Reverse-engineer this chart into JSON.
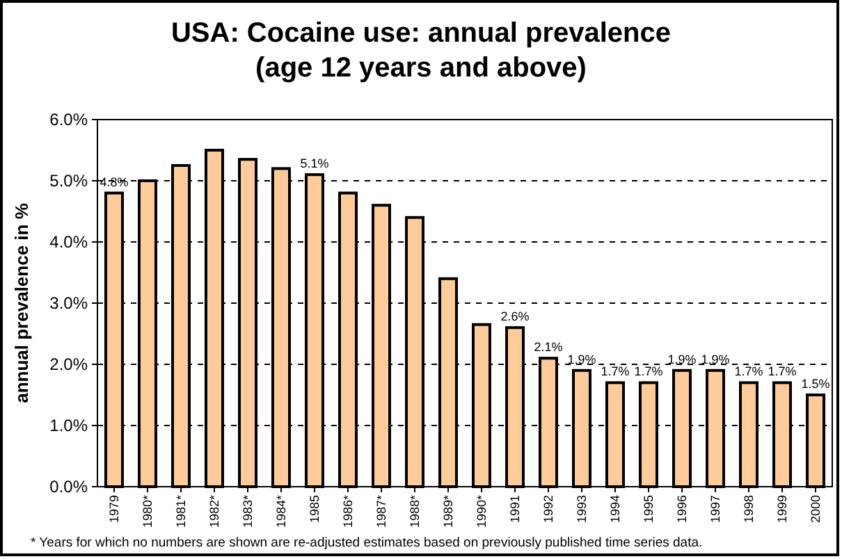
{
  "chart_data": {
    "type": "bar",
    "title": "USA: Cocaine use: annual prevalence\n(age 12 years and above)",
    "ylabel": "annual prevalence in %",
    "categories": [
      "1979",
      "1980*",
      "1981*",
      "1982*",
      "1983*",
      "1984*",
      "1985",
      "1986*",
      "1987*",
      "1988*",
      "1989*",
      "1990*",
      "1991",
      "1992",
      "1993",
      "1994",
      "1995",
      "1996",
      "1997",
      "1998",
      "1999",
      "2000"
    ],
    "values": [
      4.8,
      5.0,
      5.25,
      5.5,
      5.35,
      5.2,
      5.1,
      4.8,
      4.6,
      4.4,
      3.4,
      2.65,
      2.6,
      2.1,
      1.9,
      1.7,
      1.7,
      1.9,
      1.9,
      1.7,
      1.7,
      1.5
    ],
    "value_labels": [
      "4.8%",
      null,
      null,
      null,
      null,
      null,
      "5.1%",
      null,
      null,
      null,
      null,
      null,
      "2.6%",
      "2.1%",
      "1.9%",
      "1.7%",
      "1.7%",
      "1.9%",
      "1.9%",
      "1.7%",
      "1.7%",
      "1.5%"
    ],
    "color": "#ffcc99",
    "ylim": [
      0,
      6
    ],
    "yticks": [
      {
        "value": 0,
        "label": "0.0%"
      },
      {
        "value": 1,
        "label": "1.0%"
      },
      {
        "value": 2,
        "label": "2.0%"
      },
      {
        "value": 3,
        "label": "3.0%"
      },
      {
        "value": 4,
        "label": "4.0%"
      },
      {
        "value": 5,
        "label": "5.0%"
      },
      {
        "value": 6,
        "label": "6.0%"
      }
    ],
    "grid": "y",
    "annotations": [
      "* Years for which no numbers are shown are re-adjusted estimates based on previously published time series data."
    ]
  }
}
